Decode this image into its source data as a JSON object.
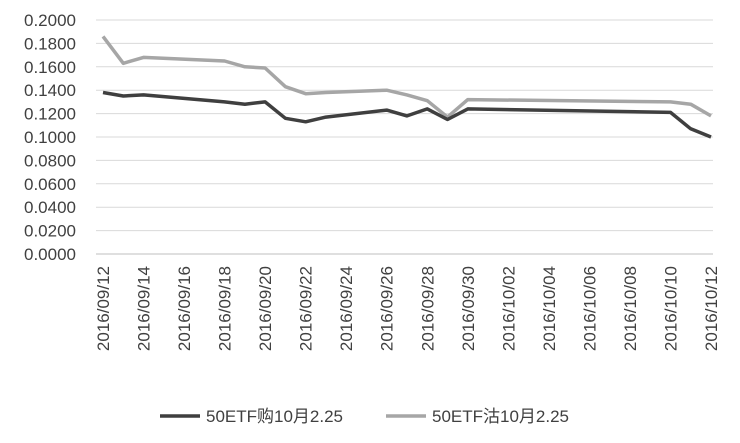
{
  "chart_data": {
    "type": "line",
    "title": "",
    "xlabel": "",
    "ylabel": "",
    "ylim": [
      0,
      0.2
    ],
    "y_ticks": [
      "0.0000",
      "0.0200",
      "0.0400",
      "0.0600",
      "0.0800",
      "0.1000",
      "0.1200",
      "0.1400",
      "0.1600",
      "0.1800",
      "0.2000"
    ],
    "x_tick_labels": [
      "2016/09/12",
      "2016/09/14",
      "2016/09/16",
      "2016/09/18",
      "2016/09/20",
      "2016/09/22",
      "2016/09/24",
      "2016/09/26",
      "2016/09/28",
      "2016/09/30",
      "2016/10/02",
      "2016/10/04",
      "2016/10/06",
      "2016/10/08",
      "2016/10/10",
      "2016/10/12"
    ],
    "x": [
      "2016/09/12",
      "2016/09/13",
      "2016/09/14",
      "2016/09/18",
      "2016/09/19",
      "2016/09/20",
      "2016/09/21",
      "2016/09/22",
      "2016/09/23",
      "2016/09/26",
      "2016/09/27",
      "2016/09/28",
      "2016/09/29",
      "2016/09/30",
      "2016/10/10",
      "2016/10/11",
      "2016/10/12"
    ],
    "grid": true,
    "legend_position": "bottom",
    "series": [
      {
        "name": "50ETF购10月2.25",
        "color": "#3f3f3f",
        "values": [
          0.138,
          0.135,
          0.136,
          0.13,
          0.128,
          0.13,
          0.116,
          0.113,
          0.117,
          0.123,
          0.118,
          0.124,
          0.115,
          0.124,
          0.121,
          0.107,
          0.1
        ]
      },
      {
        "name": "50ETF沽10月2.25",
        "color": "#a6a6a6",
        "values": [
          0.186,
          0.163,
          0.168,
          0.165,
          0.16,
          0.159,
          0.143,
          0.137,
          0.138,
          0.14,
          0.136,
          0.131,
          0.117,
          0.132,
          0.13,
          0.128,
          0.118
        ]
      }
    ]
  }
}
